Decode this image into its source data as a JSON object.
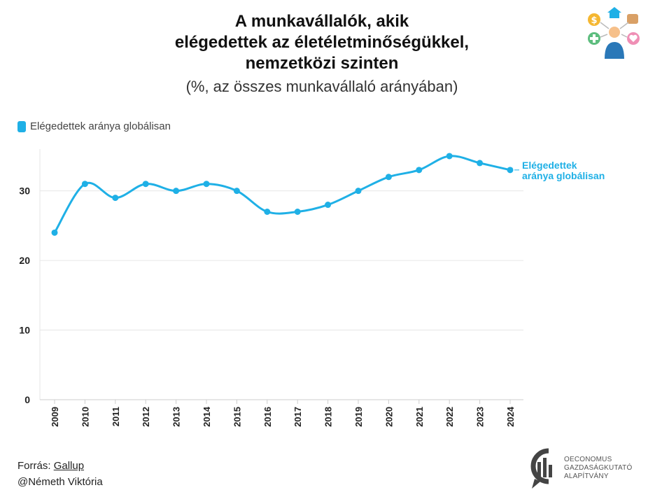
{
  "title": {
    "line1": "A munkavállalók, akik",
    "line2": "elégedettek az életéletminőségükkel,",
    "line3": "nemzetközi szinten",
    "subtitle": "(%, az összes munkavállaló arányában)"
  },
  "legend": {
    "label": "Elégedettek aránya globálisan"
  },
  "series_label": {
    "line1": "Elégedettek",
    "line2": "aránya globálisan"
  },
  "footer": {
    "source_prefix": "Forrás: ",
    "source_link": "Gallup",
    "author": "@Németh Viktória"
  },
  "logo": {
    "line1": "OECONOMUS",
    "line2": "GAZDASÁGKUTATÓ",
    "line3": "ALAPÍTVÁNY"
  },
  "icons": {
    "top_right": "work-life-icons-logo",
    "bottom_right": "oeconomus-logo-icon"
  },
  "colors": {
    "series": "#1fb0e6",
    "grid": "#e6e6e6",
    "axis": "#cccccc"
  },
  "chart_data": {
    "type": "line",
    "title": "A munkavállalók, akik elégedettek az életéletminőségükkel, nemzetközi szinten",
    "subtitle": "(%, az összes munkavállaló arányában)",
    "x": [
      "2009",
      "2010",
      "2011",
      "2012",
      "2013",
      "2014",
      "2015",
      "2016",
      "2017",
      "2018",
      "2019",
      "2020",
      "2021",
      "2022",
      "2023",
      "2024"
    ],
    "series": [
      {
        "name": "Elégedettek aránya globálisan",
        "values": [
          24,
          31,
          29,
          31,
          30,
          31,
          30,
          27,
          27,
          28,
          30,
          32,
          33,
          35,
          34,
          33
        ]
      }
    ],
    "yticks": [
      0,
      10,
      20,
      30
    ],
    "ylim": [
      0,
      36
    ],
    "grid": true,
    "legend": "top-left",
    "xlabel": "",
    "ylabel": ""
  }
}
